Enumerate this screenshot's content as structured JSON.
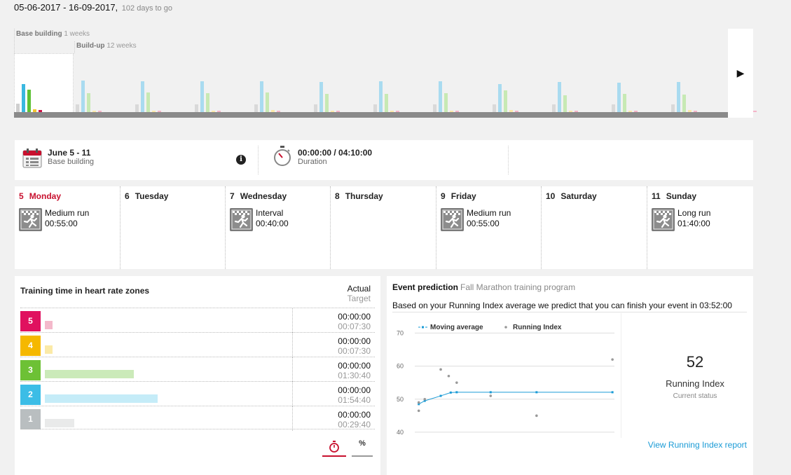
{
  "header": {
    "date_range": "05-06-2017 - 16-09-2017,",
    "days_to_go": "102 days to go"
  },
  "phases": {
    "base": {
      "name": "Base building",
      "duration": "1 weeks"
    },
    "build": {
      "name": "Build-up",
      "duration": "12 weeks"
    },
    "weeks": [
      [
        12,
        38,
        31,
        4,
        3
      ],
      [
        11,
        43,
        26,
        2,
        2
      ],
      [
        11,
        42,
        27,
        2,
        2
      ],
      [
        11,
        42,
        26,
        2,
        2
      ],
      [
        11,
        42,
        27,
        3,
        2
      ],
      [
        11,
        41,
        25,
        2,
        2
      ],
      [
        11,
        42,
        25,
        2,
        2
      ],
      [
        11,
        42,
        26,
        2,
        2
      ],
      [
        11,
        38,
        30,
        3,
        2
      ],
      [
        11,
        41,
        23,
        2,
        2
      ],
      [
        11,
        40,
        25,
        2,
        2
      ],
      [
        11,
        41,
        24,
        3,
        2
      ],
      [
        11,
        40,
        24,
        2,
        2
      ]
    ],
    "bar_colors": [
      "#d9d9d9",
      "#a9dbf0",
      "#c7e9b4",
      "#fbe9a9",
      "#f5b4c8"
    ],
    "current_bar_colors": [
      "#cfcfcf",
      "#3ab8e0",
      "#5ec236",
      "#f4c430",
      "#cc1144"
    ]
  },
  "summary": {
    "week_title": "June 5 - 11",
    "week_phase": "Base building",
    "info_icon": "i",
    "duration_value": "00:00:00 / 04:10:00",
    "duration_label": "Duration"
  },
  "week": {
    "days": [
      {
        "num": "5",
        "name": "Monday",
        "today": true,
        "session": {
          "type": "Medium run",
          "time": "00:55:00"
        }
      },
      {
        "num": "6",
        "name": "Tuesday",
        "today": false,
        "session": null
      },
      {
        "num": "7",
        "name": "Wednesday",
        "today": false,
        "session": {
          "type": "Interval",
          "time": "00:40:00"
        }
      },
      {
        "num": "8",
        "name": "Thursday",
        "today": false,
        "session": null
      },
      {
        "num": "9",
        "name": "Friday",
        "today": false,
        "session": {
          "type": "Medium run",
          "time": "00:55:00"
        }
      },
      {
        "num": "10",
        "name": "Saturday",
        "today": false,
        "session": null
      },
      {
        "num": "11",
        "name": "Sunday",
        "today": false,
        "session": {
          "type": "Long run",
          "time": "01:40:00"
        }
      }
    ]
  },
  "zones": {
    "title": "Training time in heart rate zones",
    "col_actual": "Actual",
    "col_target": "Target",
    "rows": [
      {
        "zone": "5",
        "color": "#e0115f",
        "bar_color": "#f4b9cb",
        "actual": "00:00:00",
        "target": "00:07:30",
        "target_min": 7.5
      },
      {
        "zone": "4",
        "color": "#f5b800",
        "bar_color": "#fbeaa7",
        "actual": "00:00:00",
        "target": "00:07:30",
        "target_min": 7.5
      },
      {
        "zone": "3",
        "color": "#6dc135",
        "bar_color": "#cbeab9",
        "actual": "00:00:00",
        "target": "01:30:40",
        "target_min": 90.67
      },
      {
        "zone": "2",
        "color": "#3cbde6",
        "bar_color": "#c5ecf8",
        "actual": "00:00:00",
        "target": "01:54:40",
        "target_min": 114.67
      },
      {
        "zone": "1",
        "color": "#b9bec0",
        "bar_color": "#e9eaea",
        "actual": "00:00:00",
        "target": "00:29:40",
        "target_min": 29.67
      }
    ],
    "toggle_time_icon": "stopwatch-icon",
    "toggle_pct_label": "%"
  },
  "event": {
    "title": "Event prediction",
    "program": "Fall Marathon training program",
    "prediction": "Based on your Running Index average we predict that you can finish your event in 03:52:00",
    "ri_value": "52",
    "ri_label": "Running Index",
    "ri_status": "Current status",
    "report_link": "View Running Index report",
    "accent": "#1a9bd6"
  },
  "chart_data": {
    "type": "scatter",
    "legend": [
      "Moving average",
      "Running Index"
    ],
    "legend_placement": "top-left",
    "yticks": [
      70,
      60,
      50,
      40
    ],
    "ylim": [
      38.5,
      72
    ],
    "xlim": [
      0,
      100
    ],
    "series": [
      {
        "name": "Moving average",
        "style": "line",
        "color": "#1a9bd6",
        "points": [
          [
            2,
            48.5
          ],
          [
            5,
            49.5
          ],
          [
            13,
            51
          ],
          [
            18,
            52
          ],
          [
            21,
            52.1
          ],
          [
            38,
            52.1
          ],
          [
            61,
            52.1
          ],
          [
            99,
            52.1
          ]
        ]
      },
      {
        "name": "Running Index",
        "style": "points",
        "color": "#999999",
        "points": [
          [
            2,
            46.5
          ],
          [
            2,
            49
          ],
          [
            5,
            50
          ],
          [
            13,
            59
          ],
          [
            17,
            57
          ],
          [
            21,
            55
          ],
          [
            38,
            51
          ],
          [
            61,
            45
          ],
          [
            99,
            62
          ]
        ]
      }
    ]
  }
}
